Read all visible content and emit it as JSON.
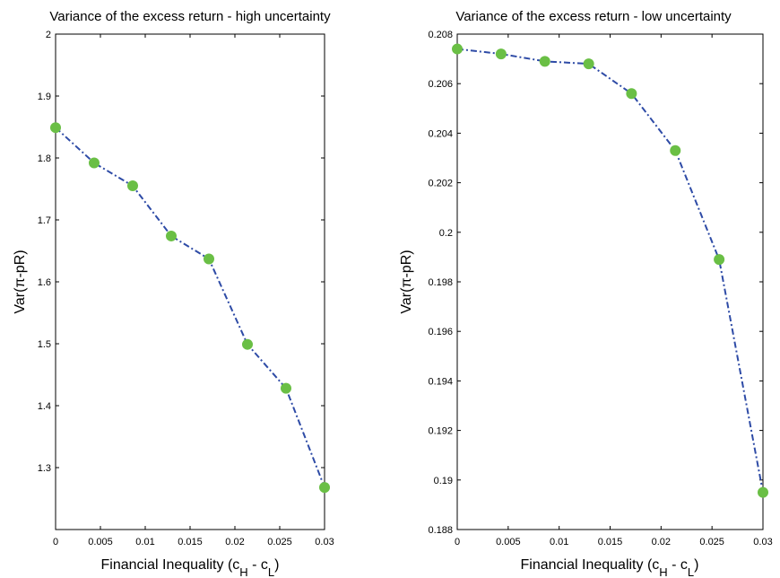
{
  "colors": {
    "line": "#2e4ba6",
    "marker": "#6abf45"
  },
  "chart_data": [
    {
      "type": "line",
      "title": "Variance of the excess return - high uncertainty",
      "xlabel_main": "Financial Inequality (c",
      "xlabel_sub1": "H",
      "xlabel_mid": " - c",
      "xlabel_sub2": "L",
      "xlabel_end": ")",
      "ylabel": "Var(π-pR)",
      "xlim": [
        0,
        0.03
      ],
      "ylim": [
        1.2,
        2.0
      ],
      "xticks": [
        0,
        0.005,
        0.01,
        0.015,
        0.02,
        0.025,
        0.03
      ],
      "xtick_labels": [
        "0",
        "0.005",
        "0.01",
        "0.015",
        "0.02",
        "0.025",
        "0.03"
      ],
      "yticks": [
        1.3,
        1.4,
        1.5,
        1.6,
        1.7,
        1.8,
        1.9,
        2.0
      ],
      "ytick_labels": [
        "1.3",
        "1.4",
        "1.5",
        "1.6",
        "1.7",
        "1.8",
        "1.9",
        "2"
      ],
      "x": [
        0,
        0.0043,
        0.0086,
        0.0129,
        0.0171,
        0.0214,
        0.0257,
        0.03
      ],
      "y": [
        1.849,
        1.792,
        1.755,
        1.674,
        1.637,
        1.499,
        1.428,
        1.268
      ],
      "grid": false
    },
    {
      "type": "line",
      "title": "Variance of the excess return - low uncertainty",
      "xlabel_main": "Financial Inequality (c",
      "xlabel_sub1": "H",
      "xlabel_mid": " - c",
      "xlabel_sub2": "L",
      "xlabel_end": ")",
      "ylabel": "Var(π-pR)",
      "xlim": [
        0,
        0.03
      ],
      "ylim": [
        0.188,
        0.208
      ],
      "xticks": [
        0,
        0.005,
        0.01,
        0.015,
        0.02,
        0.025,
        0.03
      ],
      "xtick_labels": [
        "0",
        "0.005",
        "0.01",
        "0.015",
        "0.02",
        "0.025",
        "0.03"
      ],
      "yticks": [
        0.188,
        0.19,
        0.192,
        0.194,
        0.196,
        0.198,
        0.2,
        0.202,
        0.204,
        0.206,
        0.208
      ],
      "ytick_labels": [
        "0.188",
        "0.19",
        "0.192",
        "0.194",
        "0.196",
        "0.198",
        "0.2",
        "0.202",
        "0.204",
        "0.206",
        "0.208"
      ],
      "x": [
        0,
        0.0043,
        0.0086,
        0.0129,
        0.0171,
        0.0214,
        0.0257,
        0.03
      ],
      "y": [
        0.2074,
        0.2072,
        0.2069,
        0.2068,
        0.2056,
        0.2033,
        0.1989,
        0.1895
      ],
      "grid": false
    }
  ]
}
